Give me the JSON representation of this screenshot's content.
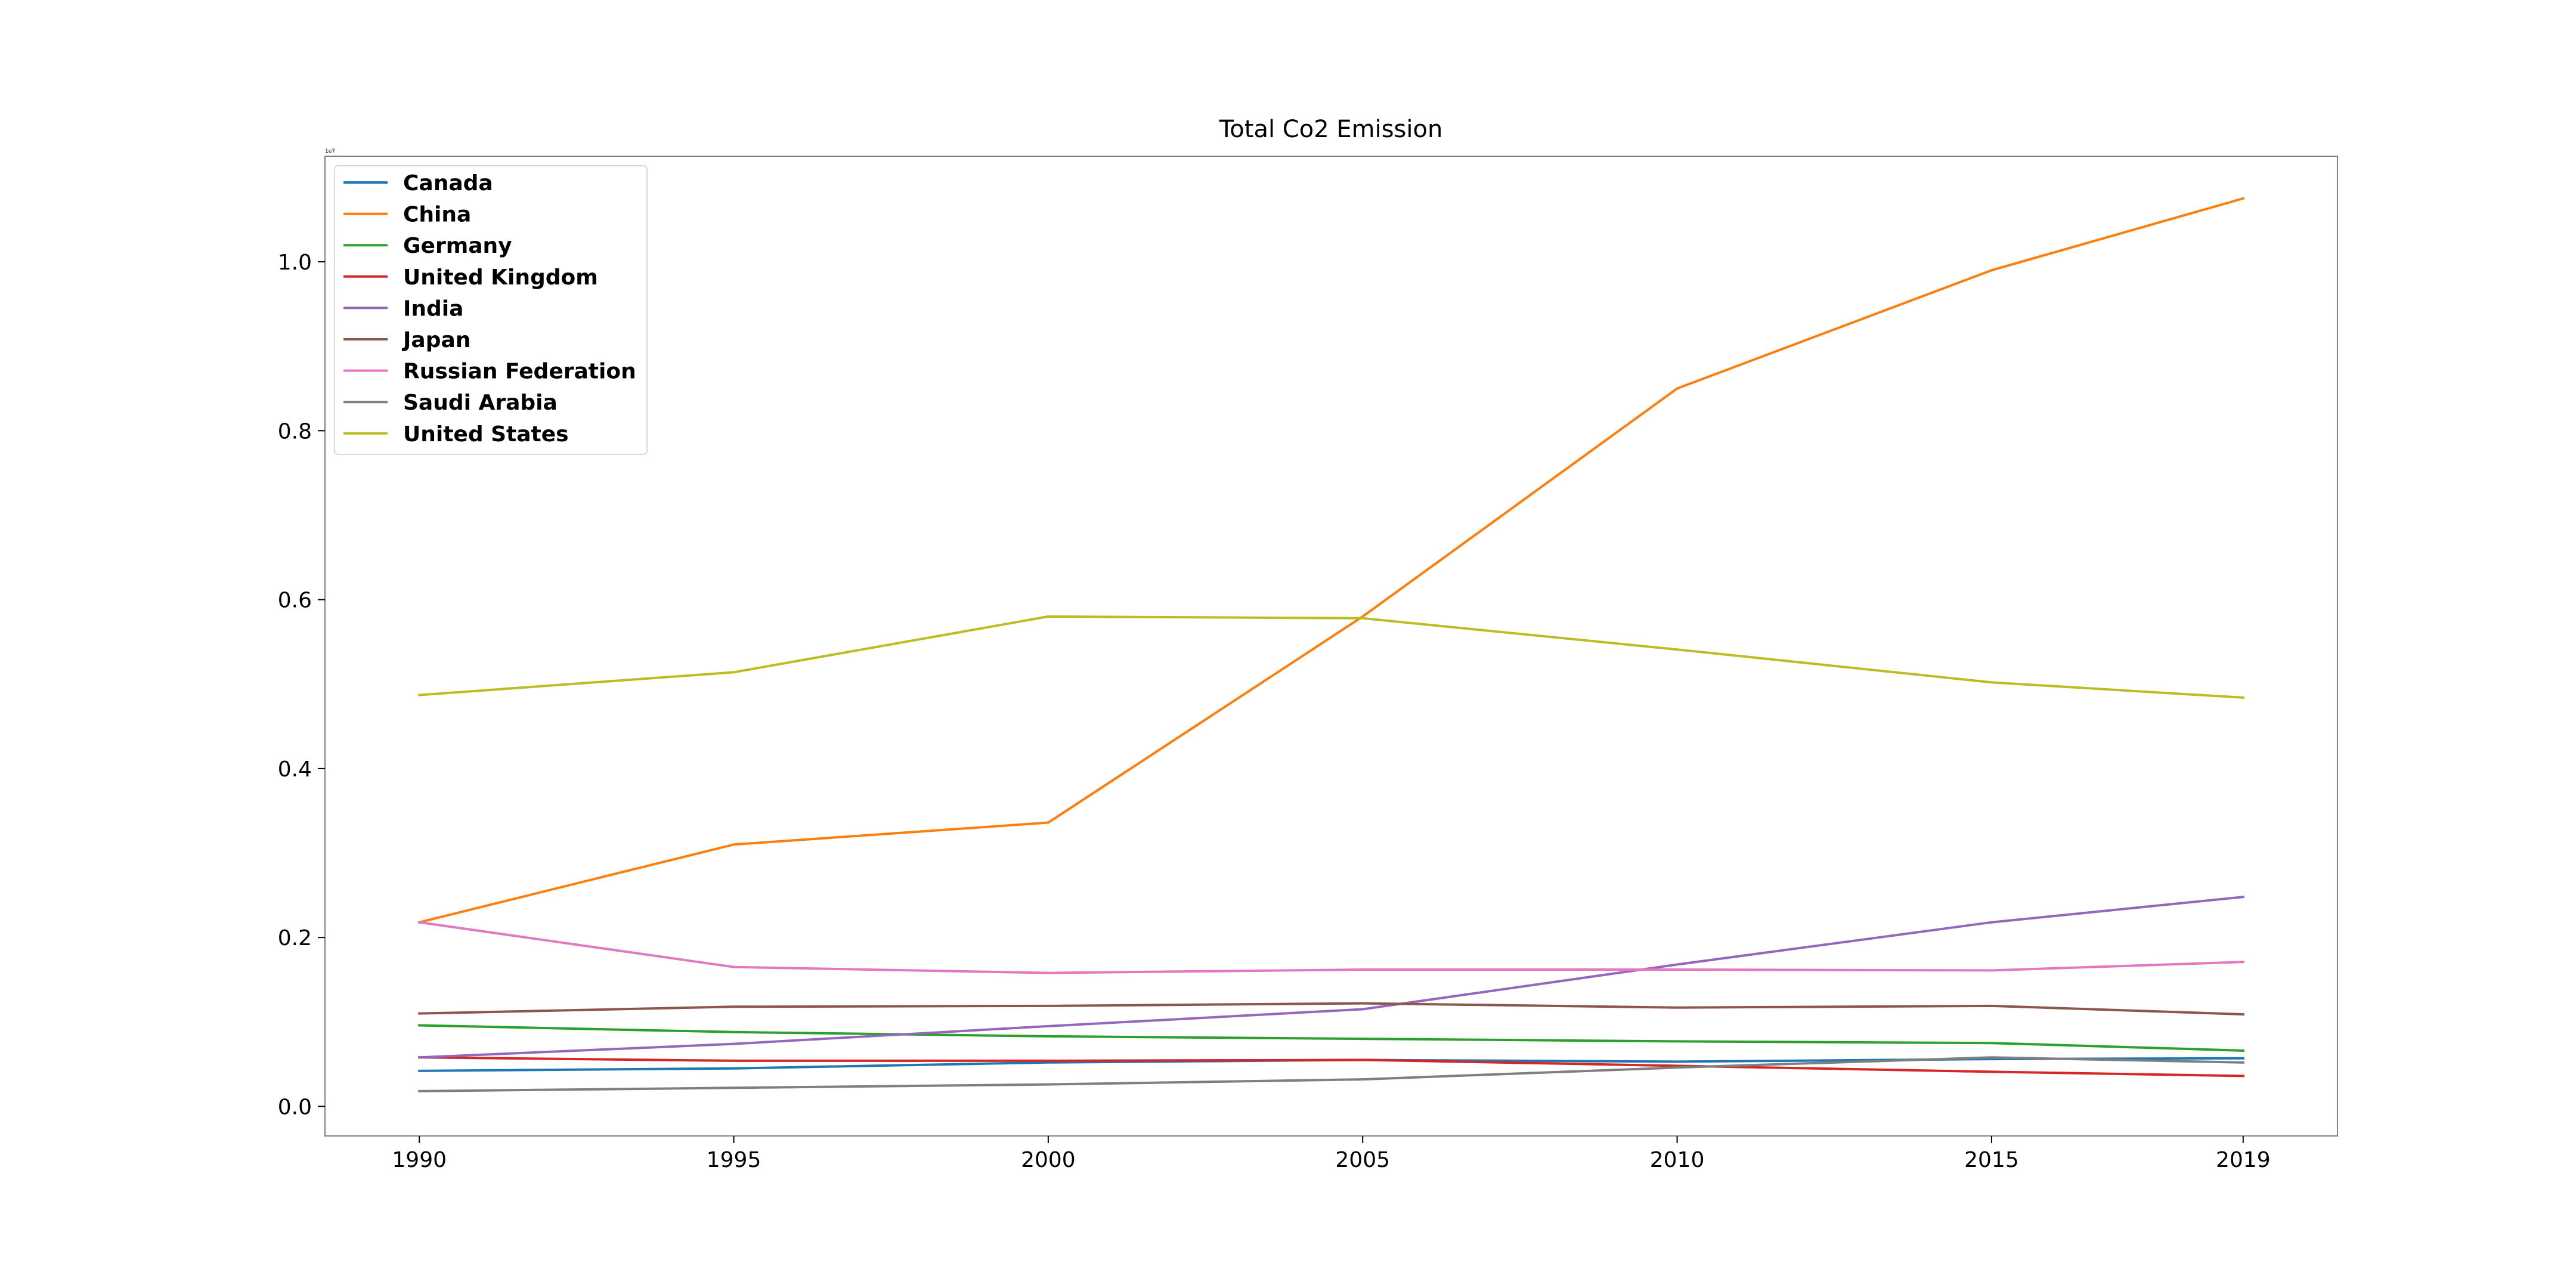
{
  "chart_data": {
    "type": "line",
    "title": "Total Co2 Emission",
    "xlabel": "",
    "ylabel": "",
    "y_offset_label": "1e7",
    "x": [
      1990,
      1995,
      2000,
      2005,
      2010,
      2015,
      2019
    ],
    "x_ticks": [
      "1990",
      "1995",
      "2000",
      "2005",
      "2010",
      "2015",
      "2019"
    ],
    "y_ticks": [
      "0.0",
      "0.2",
      "0.4",
      "0.6",
      "0.8",
      "1.0"
    ],
    "y_tick_values": [
      0.0,
      0.2,
      0.4,
      0.6,
      0.8,
      1.0
    ],
    "xlim": [
      1988.5,
      2020.5
    ],
    "ylim": [
      -0.035,
      1.125
    ],
    "grid": false,
    "legend_position": "top-left",
    "series": [
      {
        "name": "Canada",
        "color": "#1f77b4",
        "values": [
          0.042,
          0.045,
          0.052,
          0.055,
          0.053,
          0.056,
          0.057
        ]
      },
      {
        "name": "China",
        "color": "#ff7f0e",
        "values": [
          0.218,
          0.31,
          0.336,
          0.58,
          0.85,
          0.99,
          1.075
        ]
      },
      {
        "name": "Germany",
        "color": "#2ca02c",
        "values": [
          0.096,
          0.088,
          0.083,
          0.08,
          0.077,
          0.075,
          0.066
        ]
      },
      {
        "name": "United Kingdom",
        "color": "#d62728",
        "values": [
          0.058,
          0.054,
          0.054,
          0.055,
          0.048,
          0.041,
          0.036
        ]
      },
      {
        "name": "India",
        "color": "#9467bd",
        "values": [
          0.058,
          0.074,
          0.095,
          0.115,
          0.168,
          0.218,
          0.248
        ]
      },
      {
        "name": "Japan",
        "color": "#8c564b",
        "values": [
          0.11,
          0.118,
          0.119,
          0.122,
          0.117,
          0.119,
          0.109
        ]
      },
      {
        "name": "Russian Federation",
        "color": "#e377c2",
        "values": [
          0.218,
          0.165,
          0.158,
          0.162,
          0.162,
          0.161,
          0.171
        ]
      },
      {
        "name": "Saudi Arabia",
        "color": "#7f7f7f",
        "values": [
          0.018,
          0.022,
          0.026,
          0.032,
          0.046,
          0.058,
          0.052
        ]
      },
      {
        "name": "United States",
        "color": "#bcbd22",
        "values": [
          0.487,
          0.514,
          0.58,
          0.578,
          0.541,
          0.502,
          0.484
        ]
      }
    ]
  }
}
